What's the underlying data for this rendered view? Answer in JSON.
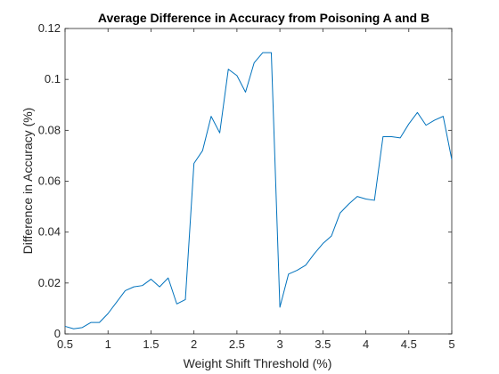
{
  "chart_data": {
    "type": "line",
    "title": "Average Difference in Accuracy from Poisoning A and B",
    "xlabel": "Weight Shift Threshold (%)",
    "ylabel": "Difference in Accuracy (%)",
    "xlim": [
      0.5,
      5
    ],
    "ylim": [
      0,
      0.12
    ],
    "xticks": [
      0.5,
      1,
      1.5,
      2,
      2.5,
      3,
      3.5,
      4,
      4.5,
      5
    ],
    "xtick_labels": [
      "0.5",
      "1",
      "1.5",
      "2",
      "2.5",
      "3",
      "3.5",
      "4",
      "4.5",
      "5"
    ],
    "yticks": [
      0,
      0.02,
      0.04,
      0.06,
      0.08,
      0.1,
      0.12
    ],
    "ytick_labels": [
      "0",
      "0.02",
      "0.04",
      "0.06",
      "0.08",
      "0.1",
      "0.12"
    ],
    "grid": false,
    "color": "#0072bd",
    "series": [
      {
        "x": [
          0.5,
          0.6,
          0.7,
          0.8,
          0.9,
          1.0,
          1.1,
          1.2,
          1.3,
          1.4,
          1.5,
          1.6,
          1.7,
          1.8,
          1.9,
          2.0,
          2.1,
          2.2,
          2.3,
          2.4,
          2.5,
          2.6,
          2.7,
          2.8,
          2.9,
          3.0,
          3.1,
          3.2,
          3.3,
          3.4,
          3.5,
          3.6,
          3.7,
          3.8,
          3.9,
          4.0,
          4.1,
          4.2,
          4.3,
          4.4,
          4.5,
          4.6,
          4.7,
          4.8,
          4.9,
          5.0
        ],
        "values": [
          0.003,
          0.002,
          0.0025,
          0.0045,
          0.0045,
          0.008,
          0.0125,
          0.017,
          0.0185,
          0.019,
          0.0215,
          0.0185,
          0.022,
          0.0118,
          0.0135,
          0.067,
          0.072,
          0.0855,
          0.079,
          0.104,
          0.1015,
          0.095,
          0.1065,
          0.1105,
          0.1105,
          0.0105,
          0.0235,
          0.025,
          0.027,
          0.0315,
          0.0355,
          0.0385,
          0.0475,
          0.051,
          0.054,
          0.053,
          0.0525,
          0.0775,
          0.0775,
          0.077,
          0.0825,
          0.087,
          0.082,
          0.084,
          0.0855,
          0.0685
        ]
      }
    ]
  }
}
